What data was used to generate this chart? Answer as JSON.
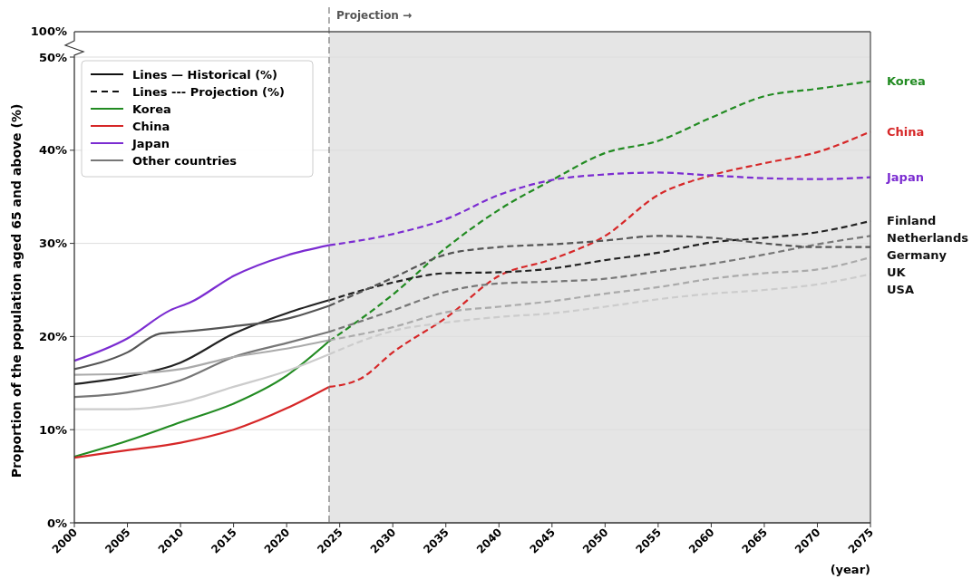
{
  "chart_data": {
    "type": "line",
    "xlabel": "(year)",
    "ylabel": "Proportion of the population aged 65 and above (%)",
    "xlim": [
      2000,
      2075
    ],
    "xticks": [
      2000,
      2005,
      2010,
      2015,
      2020,
      2025,
      2030,
      2035,
      2040,
      2045,
      2050,
      2055,
      2060,
      2065,
      2070,
      2075
    ],
    "ylim": [
      0,
      50
    ],
    "yticks": [
      {
        "value": 0,
        "label": "0%"
      },
      {
        "value": 10,
        "label": "10%"
      },
      {
        "value": 20,
        "label": "20%"
      },
      {
        "value": 30,
        "label": "30%"
      },
      {
        "value": 40,
        "label": "40%"
      },
      {
        "value": 50,
        "label": "50%"
      }
    ],
    "grid": "y",
    "legend": "top left",
    "annotations": [
      "Lines — Historical (%)",
      "Lines --- Projection (%)",
      "Other countries",
      "100%"
    ],
    "ref_lines": [
      {
        "axis": "x",
        "value": 2024,
        "label": "Projection →",
        "color": "#777777",
        "line_style": "dashed"
      }
    ],
    "bands": [
      {
        "axis": "x",
        "from": 2024,
        "to": 2075,
        "color": "#e5e5e5"
      }
    ],
    "series": [
      {
        "name": "Korea",
        "color": "#228b22",
        "line_style": "dashed",
        "x": [
          2024,
          2030,
          2035,
          2040,
          2045,
          2050,
          2055,
          2060,
          2065,
          2070,
          2075
        ],
        "values": [
          19.5,
          24.5,
          29.5,
          33.6,
          36.8,
          39.7,
          41.0,
          43.5,
          45.8,
          46.6,
          47.4
        ]
      },
      {
        "name": "China",
        "color": "#d62728",
        "line_style": "dashed",
        "x": [
          2024,
          2027,
          2030,
          2035,
          2040,
          2045,
          2050,
          2055,
          2060,
          2065,
          2070,
          2075
        ],
        "values": [
          14.6,
          15.5,
          18.3,
          22.0,
          26.5,
          28.3,
          30.8,
          35.2,
          37.3,
          38.6,
          39.8,
          42.0
        ]
      },
      {
        "name": "Japan",
        "color": "#7b2cd1",
        "line_style": "dashed",
        "x": [
          2024,
          2030,
          2035,
          2040,
          2045,
          2050,
          2055,
          2060,
          2065,
          2070,
          2075
        ],
        "values": [
          29.8,
          31.0,
          32.6,
          35.2,
          36.8,
          37.4,
          37.6,
          37.3,
          37.0,
          36.9,
          37.1
        ]
      },
      {
        "name": "Finland",
        "color": "#222222",
        "line_style": "dashed",
        "x": [
          2024,
          2030,
          2035,
          2040,
          2045,
          2050,
          2055,
          2060,
          2065,
          2070,
          2075
        ],
        "values": [
          23.9,
          25.8,
          26.8,
          26.9,
          27.3,
          28.2,
          29.0,
          30.1,
          30.6,
          31.2,
          32.4
        ]
      },
      {
        "name": "Netherlands",
        "color": "#777777",
        "line_style": "dashed",
        "x": [
          2024,
          2030,
          2035,
          2040,
          2045,
          2050,
          2055,
          2060,
          2065,
          2070,
          2075
        ],
        "values": [
          20.5,
          22.8,
          24.8,
          25.7,
          25.9,
          26.2,
          27.0,
          27.8,
          28.8,
          29.9,
          30.8
        ]
      },
      {
        "name": "Germany",
        "color": "#555555",
        "line_style": "dashed",
        "x": [
          2024,
          2030,
          2035,
          2040,
          2045,
          2050,
          2055,
          2060,
          2065,
          2070,
          2075
        ],
        "values": [
          23.3,
          26.3,
          28.8,
          29.6,
          29.9,
          30.3,
          30.8,
          30.6,
          30.0,
          29.6,
          29.6
        ]
      },
      {
        "name": "UK",
        "color": "#aaaaaa",
        "line_style": "dashed",
        "x": [
          2024,
          2030,
          2035,
          2040,
          2045,
          2050,
          2055,
          2060,
          2065,
          2070,
          2075
        ],
        "values": [
          19.6,
          21.0,
          22.6,
          23.2,
          23.8,
          24.6,
          25.3,
          26.2,
          26.8,
          27.2,
          28.5
        ]
      },
      {
        "name": "USA",
        "color": "#cccccc",
        "line_style": "dashed",
        "x": [
          2024,
          2030,
          2035,
          2040,
          2045,
          2050,
          2055,
          2060,
          2065,
          2070,
          2075
        ],
        "values": [
          18.1,
          20.6,
          21.5,
          22.1,
          22.5,
          23.2,
          24.0,
          24.6,
          25.0,
          25.6,
          26.7
        ]
      },
      {
        "color": "#228b22",
        "line_style": "solid",
        "x": [
          2000,
          2005,
          2010,
          2015,
          2020,
          2024
        ],
        "values": [
          7.1,
          8.8,
          10.8,
          12.8,
          15.8,
          19.5
        ]
      },
      {
        "color": "#d62728",
        "line_style": "solid",
        "x": [
          2000,
          2005,
          2010,
          2015,
          2020,
          2024
        ],
        "values": [
          7.0,
          7.8,
          8.6,
          10.0,
          12.3,
          14.6
        ]
      },
      {
        "color": "#7b2cd1",
        "line_style": "solid",
        "x": [
          2000,
          2005,
          2009,
          2011,
          2015,
          2020,
          2024
        ],
        "values": [
          17.4,
          19.8,
          22.8,
          23.7,
          26.5,
          28.7,
          29.8
        ]
      },
      {
        "color": "#222222",
        "line_style": "solid",
        "x": [
          2000,
          2005,
          2010,
          2015,
          2020,
          2024
        ],
        "values": [
          14.9,
          15.7,
          17.2,
          20.3,
          22.5,
          23.9
        ]
      },
      {
        "color": "#777777",
        "line_style": "solid",
        "x": [
          2000,
          2005,
          2010,
          2015,
          2020,
          2024
        ],
        "values": [
          13.5,
          14.0,
          15.3,
          17.8,
          19.3,
          20.5
        ]
      },
      {
        "color": "#555555",
        "line_style": "solid",
        "x": [
          2000,
          2005,
          2008,
          2010,
          2015,
          2020,
          2024
        ],
        "values": [
          16.5,
          18.3,
          20.3,
          20.5,
          21.1,
          21.9,
          23.3
        ]
      },
      {
        "color": "#aaaaaa",
        "line_style": "solid",
        "x": [
          2000,
          2005,
          2010,
          2015,
          2020,
          2024
        ],
        "values": [
          15.9,
          16.0,
          16.5,
          17.8,
          18.7,
          19.6
        ]
      },
      {
        "color": "#cccccc",
        "line_style": "solid",
        "x": [
          2000,
          2005,
          2010,
          2015,
          2020,
          2024
        ],
        "values": [
          12.2,
          12.2,
          12.9,
          14.6,
          16.3,
          18.1
        ]
      }
    ]
  }
}
